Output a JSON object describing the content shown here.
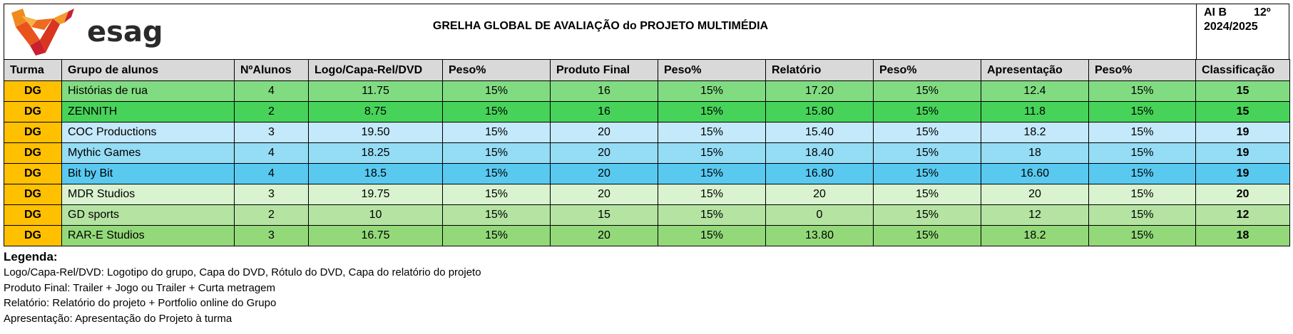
{
  "header": {
    "logo_text": "esag",
    "title": "GRELHA GLOBAL DE AVALIAÇÃO do  PROJETO  MULTIMÉDIA",
    "class_label": "AI B",
    "grade_label": "12º",
    "year_label": "2024/2025"
  },
  "table": {
    "columns": [
      "Turma",
      "Grupo de alunos",
      "NºAlunos",
      "Logo/Capa-Rel/DVD",
      "Peso%",
      "Produto Final",
      "Peso%",
      "Relatório",
      "Peso%",
      "Apresentação",
      "Peso%",
      "Classificação"
    ],
    "rows": [
      {
        "turma": "DG",
        "grupo": "Histórias de rua",
        "alunos": "4",
        "logo": "11.75",
        "peso1": "15%",
        "produto": "16",
        "peso2": "15%",
        "relatorio": "17.20",
        "peso3": "15%",
        "apresentacao": "12.4",
        "peso4": "15%",
        "classificacao": "15",
        "color": "#81dc81"
      },
      {
        "turma": "DG",
        "grupo": "ZENNITH",
        "alunos": "2",
        "logo": "8.75",
        "peso1": "15%",
        "produto": "16",
        "peso2": "15%",
        "relatorio": "15.80",
        "peso3": "15%",
        "apresentacao": "11.8",
        "peso4": "15%",
        "classificacao": "15",
        "color": "#47d35a"
      },
      {
        "turma": "DG",
        "grupo": "COC Productions",
        "alunos": "3",
        "logo": "19.50",
        "peso1": "15%",
        "produto": "20",
        "peso2": "15%",
        "relatorio": "15.40",
        "peso3": "15%",
        "apresentacao": "18.2",
        "peso4": "15%",
        "classificacao": "19",
        "color": "#c4e9fa"
      },
      {
        "turma": "DG",
        "grupo": "Mythic Games",
        "alunos": "4",
        "logo": "18.25",
        "peso1": "15%",
        "produto": "20",
        "peso2": "15%",
        "relatorio": "18.40",
        "peso3": "15%",
        "apresentacao": "18",
        "peso4": "15%",
        "classificacao": "19",
        "color": "#95dcf5"
      },
      {
        "turma": "DG",
        "grupo": "Bit by Bit",
        "alunos": "4",
        "logo": "18.5",
        "peso1": "15%",
        "produto": "20",
        "peso2": "15%",
        "relatorio": "16.80",
        "peso3": "15%",
        "apresentacao": "16.60",
        "peso4": "15%",
        "classificacao": "19",
        "color": "#5ac9f0"
      },
      {
        "turma": "DG",
        "grupo": "MDR Studios",
        "alunos": "3",
        "logo": "19.75",
        "peso1": "15%",
        "produto": "20",
        "peso2": "15%",
        "relatorio": "20",
        "peso3": "15%",
        "apresentacao": "20",
        "peso4": "15%",
        "classificacao": "20",
        "color": "#d9f2cf"
      },
      {
        "turma": "DG",
        "grupo": "GD sports",
        "alunos": "2",
        "logo": "10",
        "peso1": "15%",
        "produto": "15",
        "peso2": "15%",
        "relatorio": "0",
        "peso3": "15%",
        "apresentacao": "12",
        "peso4": "15%",
        "classificacao": "12",
        "color": "#b4e3a2"
      },
      {
        "turma": "DG",
        "grupo": "RAR-E Studios",
        "alunos": "3",
        "logo": "16.75",
        "peso1": "15%",
        "produto": "20",
        "peso2": "15%",
        "relatorio": "13.80",
        "peso3": "15%",
        "apresentacao": "18.2",
        "peso4": "15%",
        "classificacao": "18",
        "color": "#93d97a"
      }
    ]
  },
  "legend": {
    "title": "Legenda:",
    "items": [
      "Logo/Capa-Rel/DVD: Logotipo do grupo, Capa do DVD, Rótulo do DVD, Capa do relatório do projeto",
      "Produto Final: Trailer + Jogo ou Trailer + Curta metragem",
      "Relatório: Relatório do projeto + Portfolio online do Grupo",
      "Apresentação: Apresentação do Projeto à turma"
    ]
  },
  "colors": {
    "turma_cell": "#ffc000",
    "header_row": "#d9d9d9",
    "logo_orange": "#e8541c",
    "logo_red": "#c8202f"
  }
}
